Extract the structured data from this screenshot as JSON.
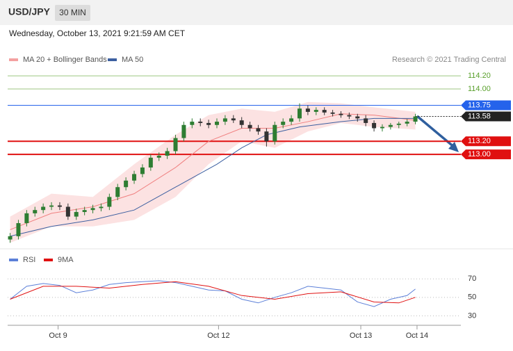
{
  "header": {
    "symbol": "USD/JPY",
    "interval": "30 MIN",
    "timestamp": "Wednesday, October 13, 2021 9:21:59 AM CET"
  },
  "chart_data": [
    {
      "type": "candlestick",
      "credit": "Research © 2021 Trading Central",
      "xlim": [
        -0.3,
        54.5
      ],
      "ylim": [
        111.6,
        114.35
      ],
      "xticks": [
        {
          "value": 5.8,
          "label": "Oct 9"
        },
        {
          "value": 25.2,
          "label": "Oct 12"
        },
        {
          "value": 42.4,
          "label": "Oct 13"
        },
        {
          "value": 49.2,
          "label": "Oct 14"
        }
      ],
      "up_color": "#2e7d32",
      "down_color": "#333333",
      "open": [
        111.7,
        111.75,
        111.95,
        112.1,
        112.15,
        112.2,
        112.22,
        112.2,
        112.05,
        112.12,
        112.15,
        112.18,
        112.2,
        112.35,
        112.5,
        112.6,
        112.7,
        112.8,
        112.95,
        112.98,
        113.05,
        113.25,
        113.45,
        113.5,
        113.48,
        113.45,
        113.5,
        113.55,
        113.52,
        113.45,
        113.4,
        113.35,
        113.2,
        113.45,
        113.5,
        113.55,
        113.7,
        113.65,
        113.68,
        113.64,
        113.62,
        113.6,
        113.58,
        113.55,
        113.48,
        113.4,
        113.42,
        113.45,
        113.47,
        113.5
      ],
      "high": [
        111.8,
        112.0,
        112.15,
        112.2,
        112.25,
        112.27,
        112.27,
        112.25,
        112.17,
        112.2,
        112.23,
        112.25,
        112.4,
        112.55,
        112.65,
        112.75,
        112.85,
        113.0,
        113.03,
        113.1,
        113.3,
        113.5,
        113.55,
        113.55,
        113.53,
        113.55,
        113.6,
        113.6,
        113.57,
        113.5,
        113.45,
        113.4,
        113.5,
        113.55,
        113.6,
        113.78,
        113.75,
        113.72,
        113.72,
        113.68,
        113.66,
        113.64,
        113.62,
        113.6,
        113.52,
        113.46,
        113.48,
        113.5,
        113.54,
        113.62
      ],
      "low": [
        111.65,
        111.7,
        111.9,
        112.05,
        112.1,
        112.15,
        112.15,
        112.0,
        112.0,
        112.07,
        112.1,
        112.13,
        112.15,
        112.3,
        112.45,
        112.55,
        112.65,
        112.75,
        112.9,
        112.93,
        113.0,
        113.2,
        113.4,
        113.43,
        113.4,
        113.4,
        113.45,
        113.48,
        113.4,
        113.35,
        113.3,
        113.12,
        113.15,
        113.4,
        113.45,
        113.5,
        113.6,
        113.6,
        113.6,
        113.58,
        113.56,
        113.54,
        113.5,
        113.43,
        113.35,
        113.35,
        113.38,
        113.4,
        113.43,
        113.46
      ],
      "close": [
        111.75,
        111.95,
        112.1,
        112.15,
        112.2,
        112.22,
        112.2,
        112.05,
        112.12,
        112.15,
        112.18,
        112.2,
        112.35,
        112.5,
        112.6,
        112.7,
        112.8,
        112.95,
        112.98,
        113.05,
        113.25,
        113.45,
        113.5,
        113.48,
        113.45,
        113.5,
        113.55,
        113.52,
        113.45,
        113.4,
        113.35,
        113.2,
        113.45,
        113.5,
        113.55,
        113.7,
        113.65,
        113.68,
        113.64,
        113.62,
        113.6,
        113.58,
        113.55,
        113.48,
        113.4,
        113.42,
        113.45,
        113.47,
        113.5,
        113.58
      ],
      "bands": {
        "name": "MA 20 + Bollinger Bands",
        "color": "#f4a0a0",
        "x": [
          0,
          5,
          10,
          15,
          20,
          24,
          28,
          32,
          36,
          40,
          44,
          49
        ],
        "upper": [
          112.05,
          112.4,
          112.35,
          112.85,
          113.3,
          113.6,
          113.7,
          113.65,
          113.8,
          113.78,
          113.72,
          113.65
        ],
        "lower": [
          111.65,
          111.9,
          111.9,
          112.0,
          112.35,
          112.85,
          113.2,
          113.1,
          113.35,
          113.48,
          113.42,
          113.38
        ]
      },
      "series": [
        {
          "name": "MA 20 + Bollinger Bands",
          "color": "#f08080",
          "x": [
            0,
            5,
            10,
            15,
            20,
            24,
            28,
            32,
            36,
            40,
            44,
            49
          ],
          "values": [
            111.85,
            112.1,
            112.2,
            112.4,
            112.8,
            113.2,
            113.4,
            113.4,
            113.5,
            113.62,
            113.6,
            113.52
          ]
        },
        {
          "name": "MA 50",
          "color": "#3c5fa0",
          "x": [
            0,
            5,
            10,
            15,
            20,
            25,
            28,
            31,
            35,
            40,
            44,
            49
          ],
          "values": [
            111.75,
            111.9,
            112.0,
            112.15,
            112.5,
            112.85,
            113.1,
            113.3,
            113.42,
            113.5,
            113.55,
            113.55
          ]
        }
      ],
      "levels": [
        {
          "value": 114.2,
          "label": "114.20",
          "color": "#5aa02c",
          "style": "plain"
        },
        {
          "value": 114.0,
          "label": "114.00",
          "color": "#5aa02c",
          "style": "plain"
        },
        {
          "value": 113.75,
          "label": "113.75",
          "color": "#2563eb",
          "style": "badge"
        },
        {
          "value": 113.58,
          "label": "113.58",
          "color": "#222222",
          "style": "dotted"
        },
        {
          "value": 113.2,
          "label": "113.20",
          "color": "#e01010",
          "style": "badge"
        },
        {
          "value": 113.0,
          "label": "113.00",
          "color": "#e01010",
          "style": "badge"
        }
      ]
    },
    {
      "type": "line",
      "xlim": [
        -0.3,
        54.5
      ],
      "ylim": [
        22,
        80
      ],
      "yticks": [
        30,
        50,
        70
      ],
      "grid": true,
      "series": [
        {
          "name": "RSI",
          "color": "#5b7fd8",
          "x": [
            0,
            2,
            4,
            6,
            8,
            10,
            12,
            14,
            16,
            18,
            20,
            22,
            24,
            26,
            28,
            30,
            32,
            34,
            36,
            38,
            40,
            42,
            44,
            46,
            48,
            49
          ],
          "values": [
            48,
            62,
            65,
            63,
            55,
            58,
            64,
            66,
            67,
            68,
            66,
            62,
            58,
            57,
            48,
            44,
            50,
            55,
            62,
            60,
            58,
            45,
            40,
            48,
            52,
            59
          ]
        },
        {
          "name": "9MA",
          "color": "#e01010",
          "x": [
            0,
            4,
            8,
            12,
            16,
            20,
            24,
            28,
            32,
            36,
            40,
            44,
            47,
            49
          ],
          "values": [
            48,
            62,
            62,
            60,
            64,
            67,
            62,
            52,
            48,
            54,
            56,
            45,
            44,
            50
          ]
        }
      ]
    }
  ]
}
